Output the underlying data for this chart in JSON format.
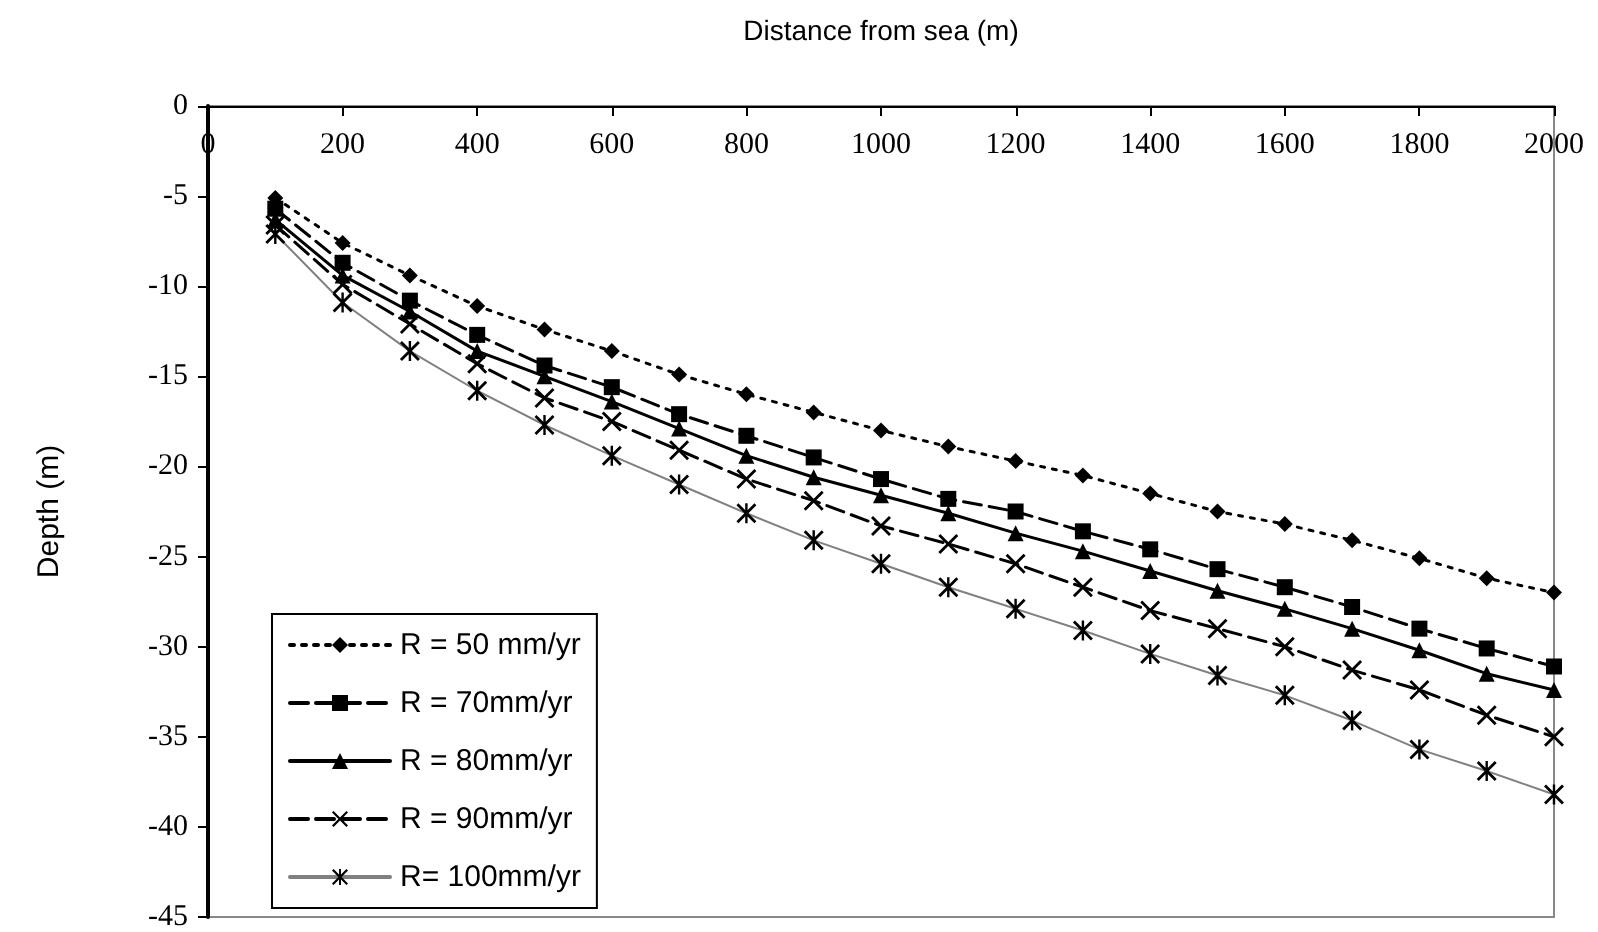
{
  "chart_data": {
    "type": "line",
    "xlabel": "Distance from sea (m)",
    "ylabel": "Depth (m)",
    "x": [
      100,
      200,
      300,
      400,
      500,
      600,
      700,
      800,
      900,
      1000,
      1100,
      1200,
      1300,
      1400,
      1500,
      1600,
      1700,
      1800,
      1900,
      2000
    ],
    "series": [
      {
        "name": "R = 50 mm/yr",
        "color": "#000000",
        "marker": "diamond",
        "line_style": "dotted",
        "values": [
          -5.1,
          -7.6,
          -9.4,
          -11.1,
          -12.4,
          -13.6,
          -14.9,
          -16.0,
          -17.0,
          -18.0,
          -18.9,
          -19.7,
          -20.5,
          -21.5,
          -22.5,
          -23.2,
          -24.1,
          -25.1,
          -26.2,
          -27.0
        ]
      },
      {
        "name": "R = 70mm/yr",
        "color": "#000000",
        "marker": "square",
        "line_style": "dashed",
        "values": [
          -5.7,
          -8.7,
          -10.8,
          -12.7,
          -14.4,
          -15.6,
          -17.1,
          -18.3,
          -19.5,
          -20.7,
          -21.8,
          -22.5,
          -23.6,
          -24.6,
          -25.7,
          -26.7,
          -27.8,
          -29.0,
          -30.1,
          -31.1
        ]
      },
      {
        "name": "R = 80mm/yr",
        "color": "#000000",
        "marker": "triangle",
        "line_style": "solid",
        "values": [
          -6.3,
          -9.4,
          -11.4,
          -13.6,
          -15.0,
          -16.4,
          -17.9,
          -19.4,
          -20.6,
          -21.6,
          -22.6,
          -23.7,
          -24.7,
          -25.8,
          -26.9,
          -27.9,
          -29.0,
          -30.2,
          -31.5,
          -32.4
        ]
      },
      {
        "name": "R = 90mm/yr",
        "color": "#000000",
        "marker": "cross",
        "line_style": "dashed",
        "values": [
          -6.6,
          -9.9,
          -12.1,
          -14.3,
          -16.2,
          -17.5,
          -19.1,
          -20.7,
          -21.9,
          -23.3,
          -24.3,
          -25.4,
          -26.7,
          -28.0,
          -29.0,
          -30.0,
          -31.3,
          -32.4,
          -33.8,
          -35.0
        ]
      },
      {
        "name": "R= 100mm/yr",
        "color": "#808080",
        "marker": "star",
        "line_style": "solid",
        "values": [
          -7.1,
          -10.9,
          -13.6,
          -15.8,
          -17.7,
          -19.4,
          -21.0,
          -22.6,
          -24.1,
          -25.4,
          -26.7,
          -27.9,
          -29.1,
          -30.4,
          -31.6,
          -32.7,
          -34.1,
          -35.7,
          -36.9,
          -38.2
        ]
      }
    ],
    "xlim": [
      0,
      2000
    ],
    "xticks": [
      0,
      200,
      400,
      600,
      800,
      1000,
      1200,
      1400,
      1600,
      1800,
      2000
    ],
    "ylim": [
      -45,
      0
    ],
    "yticks": [
      -45,
      -40,
      -35,
      -30,
      -25,
      -20,
      -15,
      -10,
      -5,
      0
    ],
    "grid": false,
    "legend": "bottom left"
  }
}
